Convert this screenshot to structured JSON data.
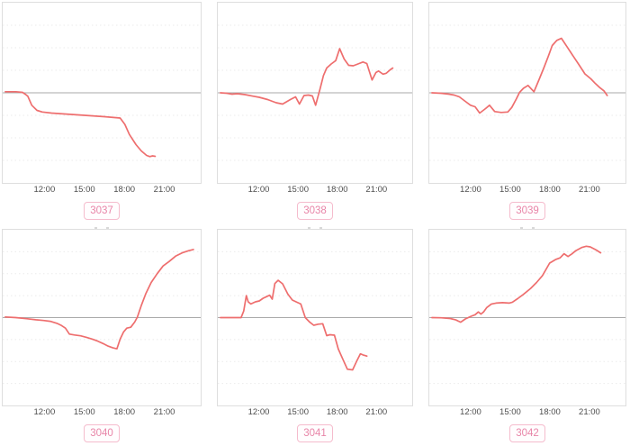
{
  "colors": {
    "line": "#ee6e6e",
    "zero_line": "#a9a9a9",
    "grid_line": "#ebebeb",
    "plot_border": "#dedede",
    "tick_text": "#4d4d4d",
    "badge_text": "#e885a8",
    "badge_border": "#f5bccd"
  },
  "x_axis": {
    "range_hours": [
      8.8,
      23.8
    ],
    "tick_hours": [
      12,
      15,
      18,
      21
    ],
    "tick_labels": [
      "12:00",
      "15:00",
      "18:00",
      "21:00"
    ]
  },
  "y_axis": {
    "range_units": [
      -4,
      4
    ],
    "gridline_step_units": 1,
    "zero_baseline": true,
    "labels_visible": false
  },
  "chart_data": [
    {
      "type": "line",
      "label": "3037",
      "legend": "none",
      "points": [
        [
          9,
          0.05
        ],
        [
          9.8,
          0.05
        ],
        [
          10.3,
          0.02
        ],
        [
          10.55,
          -0.08
        ],
        [
          10.7,
          -0.15
        ],
        [
          11.0,
          -0.55
        ],
        [
          11.4,
          -0.78
        ],
        [
          11.8,
          -0.85
        ],
        [
          12.5,
          -0.9
        ],
        [
          13.5,
          -0.94
        ],
        [
          14.5,
          -0.98
        ],
        [
          15.5,
          -1.02
        ],
        [
          16.5,
          -1.06
        ],
        [
          17.3,
          -1.1
        ],
        [
          17.7,
          -1.12
        ],
        [
          18.05,
          -1.4
        ],
        [
          18.4,
          -1.85
        ],
        [
          18.9,
          -2.3
        ],
        [
          19.3,
          -2.58
        ],
        [
          19.7,
          -2.78
        ],
        [
          19.95,
          -2.83
        ],
        [
          20.15,
          -2.8
        ],
        [
          20.35,
          -2.82
        ]
      ]
    },
    {
      "type": "line",
      "label": "3038",
      "legend": "none",
      "points": [
        [
          9,
          0
        ],
        [
          9.5,
          -0.02
        ],
        [
          9.9,
          -0.06
        ],
        [
          10.3,
          -0.04
        ],
        [
          10.9,
          -0.08
        ],
        [
          11.55,
          -0.15
        ],
        [
          12.0,
          -0.2
        ],
        [
          12.65,
          -0.3
        ],
        [
          13.3,
          -0.44
        ],
        [
          13.8,
          -0.5
        ],
        [
          14.4,
          -0.3
        ],
        [
          14.8,
          -0.18
        ],
        [
          15.1,
          -0.5
        ],
        [
          15.45,
          -0.12
        ],
        [
          15.8,
          -0.1
        ],
        [
          16.1,
          -0.14
        ],
        [
          16.35,
          -0.55
        ],
        [
          16.7,
          0.2
        ],
        [
          16.95,
          0.77
        ],
        [
          17.2,
          1.1
        ],
        [
          17.55,
          1.28
        ],
        [
          17.9,
          1.43
        ],
        [
          18.2,
          1.96
        ],
        [
          18.55,
          1.5
        ],
        [
          18.9,
          1.22
        ],
        [
          19.25,
          1.2
        ],
        [
          19.7,
          1.3
        ],
        [
          20.0,
          1.37
        ],
        [
          20.3,
          1.3
        ],
        [
          20.7,
          0.57
        ],
        [
          21.0,
          0.9
        ],
        [
          21.2,
          0.97
        ],
        [
          21.55,
          0.83
        ],
        [
          21.8,
          0.87
        ],
        [
          22.1,
          1.02
        ],
        [
          22.3,
          1.1
        ]
      ]
    },
    {
      "type": "line",
      "label": "3039",
      "legend": "none",
      "points": [
        [
          9,
          0
        ],
        [
          9.7,
          -0.02
        ],
        [
          10.3,
          -0.06
        ],
        [
          10.7,
          -0.1
        ],
        [
          11.1,
          -0.18
        ],
        [
          11.55,
          -0.38
        ],
        [
          11.95,
          -0.55
        ],
        [
          12.3,
          -0.62
        ],
        [
          12.65,
          -0.9
        ],
        [
          13.1,
          -0.7
        ],
        [
          13.4,
          -0.55
        ],
        [
          13.8,
          -0.83
        ],
        [
          14.3,
          -0.87
        ],
        [
          14.8,
          -0.85
        ],
        [
          15.1,
          -0.65
        ],
        [
          15.45,
          -0.28
        ],
        [
          15.7,
          0.02
        ],
        [
          16.0,
          0.2
        ],
        [
          16.35,
          0.33
        ],
        [
          16.8,
          0.05
        ],
        [
          17.2,
          0.6
        ],
        [
          17.55,
          1.1
        ],
        [
          17.9,
          1.63
        ],
        [
          18.2,
          2.1
        ],
        [
          18.55,
          2.33
        ],
        [
          18.9,
          2.42
        ],
        [
          19.35,
          2.03
        ],
        [
          19.8,
          1.63
        ],
        [
          20.25,
          1.24
        ],
        [
          20.7,
          0.84
        ],
        [
          21.15,
          0.62
        ],
        [
          21.5,
          0.41
        ],
        [
          21.8,
          0.25
        ],
        [
          22.15,
          0.09
        ],
        [
          22.4,
          -0.12
        ]
      ]
    },
    {
      "type": "line",
      "label": "3040",
      "legend": "none",
      "points": [
        [
          9,
          0.03
        ],
        [
          9.8,
          0
        ],
        [
          10.6,
          -0.05
        ],
        [
          11.3,
          -0.1
        ],
        [
          11.9,
          -0.13
        ],
        [
          12.4,
          -0.17
        ],
        [
          12.95,
          -0.27
        ],
        [
          13.25,
          -0.36
        ],
        [
          13.55,
          -0.48
        ],
        [
          13.85,
          -0.75
        ],
        [
          14.25,
          -0.79
        ],
        [
          14.7,
          -0.83
        ],
        [
          15.15,
          -0.9
        ],
        [
          15.6,
          -0.98
        ],
        [
          16.0,
          -1.07
        ],
        [
          16.4,
          -1.18
        ],
        [
          16.8,
          -1.3
        ],
        [
          17.15,
          -1.38
        ],
        [
          17.45,
          -1.42
        ],
        [
          17.7,
          -0.98
        ],
        [
          17.95,
          -0.66
        ],
        [
          18.2,
          -0.48
        ],
        [
          18.5,
          -0.44
        ],
        [
          18.8,
          -0.2
        ],
        [
          19.0,
          0.02
        ],
        [
          19.3,
          0.55
        ],
        [
          19.65,
          1.1
        ],
        [
          20.05,
          1.6
        ],
        [
          20.5,
          2.0
        ],
        [
          20.95,
          2.35
        ],
        [
          21.4,
          2.55
        ],
        [
          21.9,
          2.8
        ],
        [
          22.4,
          2.95
        ],
        [
          22.9,
          3.05
        ],
        [
          23.25,
          3.1
        ]
      ]
    },
    {
      "type": "line",
      "label": "3041",
      "legend": "none",
      "points": [
        [
          9,
          0
        ],
        [
          9.6,
          0
        ],
        [
          10.2,
          0
        ],
        [
          10.6,
          0
        ],
        [
          10.8,
          0.3
        ],
        [
          11.0,
          1.0
        ],
        [
          11.15,
          0.72
        ],
        [
          11.35,
          0.62
        ],
        [
          11.7,
          0.72
        ],
        [
          12.0,
          0.76
        ],
        [
          12.3,
          0.88
        ],
        [
          12.55,
          0.95
        ],
        [
          12.8,
          1.02
        ],
        [
          13.0,
          0.84
        ],
        [
          13.2,
          1.55
        ],
        [
          13.45,
          1.7
        ],
        [
          13.8,
          1.54
        ],
        [
          14.2,
          1.07
        ],
        [
          14.55,
          0.8
        ],
        [
          14.9,
          0.7
        ],
        [
          15.2,
          0.62
        ],
        [
          15.55,
          0.0
        ],
        [
          15.9,
          -0.21
        ],
        [
          16.2,
          -0.35
        ],
        [
          16.55,
          -0.3
        ],
        [
          16.9,
          -0.28
        ],
        [
          17.2,
          -0.82
        ],
        [
          17.45,
          -0.78
        ],
        [
          17.8,
          -0.8
        ],
        [
          18.1,
          -1.43
        ],
        [
          18.45,
          -1.9
        ],
        [
          18.8,
          -2.35
        ],
        [
          19.2,
          -2.38
        ],
        [
          19.5,
          -2.0
        ],
        [
          19.8,
          -1.65
        ],
        [
          20.0,
          -1.7
        ],
        [
          20.3,
          -1.75
        ]
      ]
    },
    {
      "type": "line",
      "label": "3042",
      "legend": "none",
      "points": [
        [
          9,
          0
        ],
        [
          9.7,
          -0.01
        ],
        [
          10.4,
          -0.04
        ],
        [
          10.8,
          -0.1
        ],
        [
          11.2,
          -0.21
        ],
        [
          11.55,
          -0.06
        ],
        [
          12.0,
          0.06
        ],
        [
          12.3,
          0.13
        ],
        [
          12.55,
          0.26
        ],
        [
          12.75,
          0.16
        ],
        [
          12.95,
          0.26
        ],
        [
          13.2,
          0.46
        ],
        [
          13.55,
          0.62
        ],
        [
          13.9,
          0.66
        ],
        [
          14.4,
          0.68
        ],
        [
          14.9,
          0.66
        ],
        [
          15.15,
          0.7
        ],
        [
          15.55,
          0.86
        ],
        [
          16.0,
          1.06
        ],
        [
          16.55,
          1.33
        ],
        [
          17.0,
          1.6
        ],
        [
          17.45,
          1.91
        ],
        [
          18.0,
          2.48
        ],
        [
          18.45,
          2.64
        ],
        [
          18.8,
          2.72
        ],
        [
          19.1,
          2.91
        ],
        [
          19.4,
          2.78
        ],
        [
          19.7,
          2.9
        ],
        [
          20.0,
          3.05
        ],
        [
          20.45,
          3.19
        ],
        [
          20.8,
          3.25
        ],
        [
          21.1,
          3.22
        ],
        [
          21.55,
          3.08
        ],
        [
          21.9,
          2.95
        ]
      ]
    }
  ]
}
